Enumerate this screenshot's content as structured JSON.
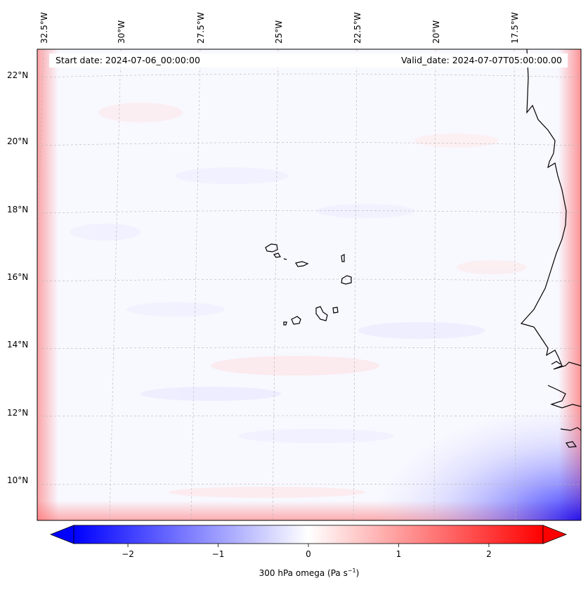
{
  "map": {
    "start_date_text": "Start date: 2024-07-06_00:00:00",
    "valid_date_text": "Valid_date: 2024-07-07T05:00:00.00",
    "lon_labels": [
      "32.5°W",
      "30°W",
      "27.5°W",
      "25°W",
      "22.5°W",
      "20°W",
      "17.5°W"
    ],
    "lat_labels": [
      "22°N",
      "20°N",
      "18°N",
      "16°N",
      "14°N",
      "12°N",
      "10°N"
    ],
    "colors": {
      "positive": "#ff0000",
      "negative": "#0000ff",
      "neutral": "#ffffff",
      "coast": "#000000",
      "grid": "#b0b0b0"
    }
  },
  "colorbar": {
    "min": -2.6,
    "max": 2.6,
    "ticks": [
      {
        "value": -2,
        "label": "−2"
      },
      {
        "value": -1,
        "label": "−1"
      },
      {
        "value": 0,
        "label": "0"
      },
      {
        "value": 1,
        "label": "1"
      },
      {
        "value": 2,
        "label": "2"
      }
    ],
    "title_text": "300 hPa omega (Pa s",
    "title_sup": "−1",
    "title_close": ")"
  }
}
